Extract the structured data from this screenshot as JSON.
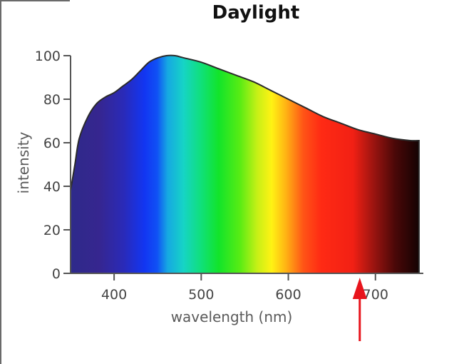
{
  "chart_data": {
    "type": "area",
    "title": "Daylight",
    "xlabel": "wavelength (nm)",
    "ylabel": "intensity",
    "xlim": [
      350,
      755
    ],
    "ylim": [
      0,
      100
    ],
    "x_ticks": [
      400,
      500,
      600,
      700
    ],
    "x_tick_labels": [
      "400",
      "500",
      "600",
      "700"
    ],
    "y_ticks": [
      0,
      20,
      40,
      60,
      80,
      100
    ],
    "y_tick_labels": [
      "0",
      "20",
      "40",
      "60",
      "80",
      "100"
    ],
    "grid": false,
    "legend": "none",
    "fill": "visible spectrum gradient",
    "series": [
      {
        "x": [
          350,
          355,
          360,
          370,
          380,
          390,
          400,
          410,
          420,
          430,
          440,
          450,
          460,
          470,
          480,
          500,
          520,
          540,
          560,
          580,
          600,
          620,
          640,
          660,
          680,
          700,
          720,
          740,
          750
        ],
        "values": [
          38,
          50,
          62,
          72,
          78,
          81,
          83,
          86,
          89,
          93,
          97,
          99,
          100,
          100,
          99,
          97,
          94,
          91,
          88,
          84,
          80,
          76,
          72,
          69,
          66,
          64,
          62,
          61,
          61
        ]
      }
    ],
    "annotation": {
      "type": "arrow",
      "color": "#e8141c",
      "target_x": 682,
      "direction": "up"
    }
  }
}
